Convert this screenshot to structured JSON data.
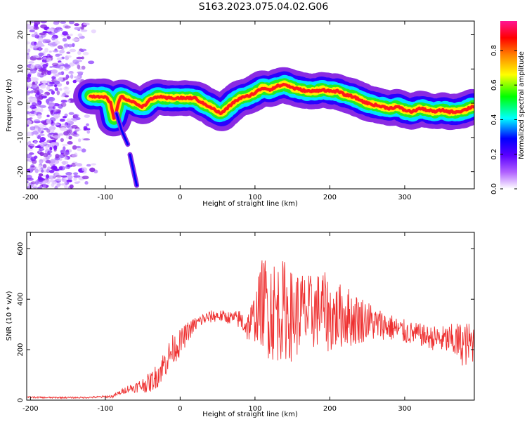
{
  "title": "S163.2023.075.04.02.G06",
  "chart_data": [
    {
      "type": "heatmap",
      "xlabel": "Height of straight line (km)",
      "ylabel": "Frequency (Hz)",
      "xlim": [
        -205,
        393
      ],
      "ylim": [
        -25,
        24
      ],
      "xticks": [
        "-200",
        "-100",
        "0",
        "100",
        "200",
        "300"
      ],
      "xtick_values": [
        -200,
        -100,
        0,
        100,
        200,
        300
      ],
      "yticks": [
        "-20",
        "-10",
        "0",
        "10",
        "20"
      ],
      "ytick_values": [
        -20,
        -10,
        0,
        10,
        20
      ],
      "colorbar": {
        "label": "Normalized spectral amplitude",
        "ticks": [
          "0.0",
          "0.2",
          "0.4",
          "0.6",
          "0.8"
        ],
        "tick_values": [
          0.0,
          0.2,
          0.4,
          0.6,
          0.8
        ],
        "range": [
          0,
          0.97
        ],
        "colormap": [
          "#ffffff",
          "#8a2be2",
          "#0000ff",
          "#00ffff",
          "#00ff00",
          "#ffff00",
          "#ff8000",
          "#ff0000",
          "#ff1493"
        ]
      },
      "ridge": {
        "x": [
          -120,
          -100,
          -93,
          -88,
          -80,
          -70,
          -60,
          -50,
          -40,
          -30,
          -20,
          -10,
          0,
          10,
          20,
          30,
          40,
          50,
          55,
          60,
          70,
          80,
          90,
          100,
          110,
          120,
          130,
          140,
          150,
          160,
          170,
          180,
          190,
          200,
          210,
          220,
          230,
          240,
          250,
          260,
          270,
          280,
          290,
          300,
          310,
          320,
          330,
          340,
          350,
          360,
          370,
          380,
          390
        ],
        "y": [
          2,
          2,
          0,
          -5,
          2,
          1,
          0,
          -1,
          1,
          2,
          1.5,
          1.5,
          1.5,
          1.5,
          1.5,
          0,
          -1,
          -2.5,
          -3,
          -2,
          0,
          1.5,
          2,
          3,
          4.5,
          4,
          5,
          5.5,
          4.5,
          4,
          3.5,
          3.5,
          4,
          3.5,
          3.5,
          2.5,
          2,
          1,
          0,
          -0.5,
          -1,
          -1.5,
          -1,
          -2,
          -2.5,
          -1.5,
          -2,
          -2.5,
          -2,
          -2.5,
          -2.5,
          -2,
          -1
        ]
      },
      "secondary_tracks": [
        {
          "x": [
            -85,
            -78,
            -70
          ],
          "y": [
            -3,
            -8,
            -12
          ]
        },
        {
          "x": [
            -67,
            -62,
            -58
          ],
          "y": [
            -15,
            -20,
            -24
          ]
        }
      ]
    },
    {
      "type": "line",
      "xlabel": "Height of straight line (km)",
      "ylabel": "SNR (10 * v/v)",
      "xlim": [
        -205,
        393
      ],
      "ylim": [
        0,
        665
      ],
      "xticks": [
        "-200",
        "-100",
        "0",
        "100",
        "200",
        "300"
      ],
      "xtick_values": [
        -200,
        -100,
        0,
        100,
        200,
        300
      ],
      "yticks": [
        "0",
        "200",
        "400",
        "600"
      ],
      "ytick_values": [
        0,
        200,
        400,
        600
      ],
      "line_color": "#ee3030",
      "series": [
        {
          "x": [
            -205,
            -180,
            -150,
            -130,
            -110,
            -90,
            -80,
            -70,
            -60,
            -50,
            -40,
            -30,
            -20,
            -10,
            0,
            10,
            20,
            30,
            40,
            50,
            60,
            70,
            80,
            90,
            100,
            110,
            120,
            130,
            140,
            150,
            160,
            170,
            180,
            190,
            200,
            210,
            220,
            230,
            240,
            250,
            260,
            270,
            280,
            290,
            300,
            310,
            320,
            330,
            340,
            350,
            360,
            370,
            380,
            393
          ],
          "values": [
            12,
            10,
            10,
            10,
            12,
            15,
            30,
            45,
            50,
            60,
            70,
            100,
            150,
            200,
            225,
            270,
            300,
            320,
            330,
            335,
            330,
            325,
            320,
            290,
            330,
            390,
            370,
            350,
            360,
            330,
            350,
            340,
            350,
            370,
            330,
            330,
            340,
            320,
            320,
            320,
            300,
            300,
            290,
            280,
            270,
            265,
            260,
            250,
            245,
            240,
            240,
            230,
            220,
            230
          ],
          "amplitude": [
            3,
            3,
            3,
            3,
            4,
            6,
            10,
            15,
            20,
            30,
            40,
            50,
            60,
            60,
            55,
            40,
            30,
            25,
            25,
            25,
            25,
            25,
            40,
            60,
            100,
            180,
            220,
            200,
            200,
            180,
            170,
            160,
            150,
            150,
            150,
            130,
            130,
            110,
            100,
            80,
            70,
            60,
            55,
            50,
            50,
            45,
            45,
            45,
            50,
            55,
            60,
            80,
            90,
            80
          ]
        }
      ]
    }
  ]
}
